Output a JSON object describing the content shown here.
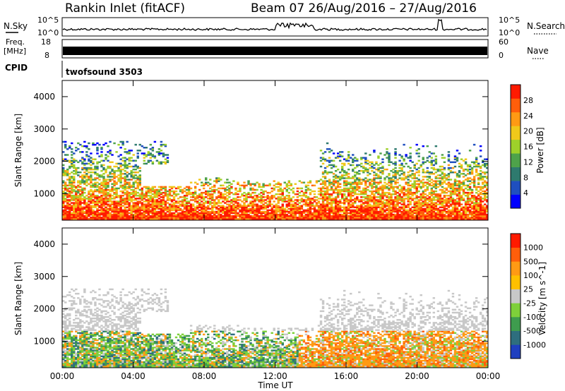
{
  "header": {
    "station": "Rankin Inlet (fitACF)",
    "beam_range": "Beam 07  26/Aug/2016 – 27/Aug/2016"
  },
  "top_panels": {
    "nsky_label": "N.Sky",
    "nsky_ticks": [
      "10^5",
      "10^0"
    ],
    "nsearch_label": "N.Search",
    "nsearch_ticks": [
      "10^5",
      "10^0"
    ],
    "freq_label_1": "Freq.",
    "freq_label_2": "[MHz]",
    "freq_ticks": [
      "18",
      "8"
    ],
    "nave_label": "Nave",
    "nave_ticks": [
      "60",
      "0"
    ],
    "cpid_label": "CPID",
    "cpid_value": "twofsound 3503"
  },
  "chart_data": [
    {
      "type": "heatmap",
      "quantity": "Power",
      "xlabel": "",
      "ylabel": "Slant Range [km]",
      "y_ticks": [
        "1000",
        "2000",
        "3000",
        "4000"
      ],
      "ylim": [
        180,
        4500
      ],
      "colorbar_label": "Power [dB]",
      "colorbar_ticks": [
        "28",
        "24",
        "20",
        "16",
        "12",
        "8",
        "4"
      ],
      "colors": [
        "#0000ff",
        "#1f4fbf",
        "#2e7a6e",
        "#4ea24a",
        "#9ed02a",
        "#f0c81a",
        "#ff9a14",
        "#ff5e0a",
        "#ff1a00"
      ]
    },
    {
      "type": "heatmap",
      "quantity": "Velocity",
      "xlabel": "Time UT",
      "ylabel": "Slant Range [km]",
      "y_ticks": [
        "1000",
        "2000",
        "3000",
        "4000"
      ],
      "ylim": [
        180,
        4500
      ],
      "colorbar_label": "Velocity [m s^-1]",
      "colorbar_ticks": [
        "1000",
        "500",
        "100",
        "25",
        "-25",
        "-100",
        "-500",
        "-1000"
      ],
      "colors": [
        "#1f3fbf",
        "#2e6e7e",
        "#3e9c4e",
        "#7ed03a",
        "#c8c8c8",
        "#ffc000",
        "#ff9a14",
        "#ff5e0a",
        "#ff1a00"
      ]
    }
  ],
  "x_axis": {
    "ticks": [
      "00:00",
      "04:00",
      "08:00",
      "12:00",
      "16:00",
      "20:00",
      "00:00"
    ],
    "label": "Time UT"
  }
}
